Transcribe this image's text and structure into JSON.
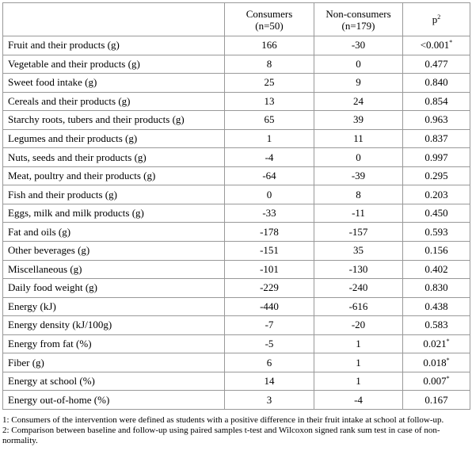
{
  "table": {
    "header": {
      "consumers": [
        "Consumers",
        "(n=50)"
      ],
      "non_consumers": [
        "Non-consumers",
        "(n=179)"
      ],
      "p": {
        "text": "p",
        "sup": "2"
      }
    },
    "rows": [
      {
        "label": "Fruit and their products (g)",
        "consumers": 166,
        "non_consumers": -30,
        "p": "<0.001",
        "note": "*"
      },
      {
        "label": "Vegetable and their products (g)",
        "consumers": 8,
        "non_consumers": 0,
        "p": "0.477"
      },
      {
        "label": "Sweet food intake (g)",
        "consumers": 25,
        "non_consumers": 9,
        "p": "0.840"
      },
      {
        "label": "Cereals and their products (g)",
        "consumers": 13,
        "non_consumers": 24,
        "p": "0.854"
      },
      {
        "label": "Starchy roots, tubers and their products (g)",
        "consumers": 65,
        "non_consumers": 39,
        "p": "0.963"
      },
      {
        "label": "Legumes and their products (g)",
        "consumers": 1,
        "non_consumers": 11,
        "p": "0.837"
      },
      {
        "label": "Nuts, seeds and their products (g)",
        "consumers": -4,
        "non_consumers": 0,
        "p": "0.997"
      },
      {
        "label": "Meat, poultry and their products (g)",
        "consumers": -64,
        "non_consumers": -39,
        "p": "0.295"
      },
      {
        "label": "Fish and their products (g)",
        "consumers": 0,
        "non_consumers": 8,
        "p": "0.203"
      },
      {
        "label": "Eggs, milk and milk products (g)",
        "consumers": -33,
        "non_consumers": -11,
        "p": "0.450"
      },
      {
        "label": "Fat and oils (g)",
        "consumers": -178,
        "non_consumers": -157,
        "p": "0.593"
      },
      {
        "label": "Other beverages (g)",
        "consumers": -151,
        "non_consumers": 35,
        "p": "0.156"
      },
      {
        "label": "Miscellaneous (g)",
        "consumers": -101,
        "non_consumers": -130,
        "p": "0.402"
      },
      {
        "label": "Daily food weight (g)",
        "consumers": -229,
        "non_consumers": -240,
        "p": "0.830"
      },
      {
        "label": "Energy (kJ)",
        "consumers": -440,
        "non_consumers": -616,
        "p": "0.438"
      },
      {
        "label": "Energy density (kJ/100g)",
        "consumers": -7,
        "non_consumers": -20,
        "p": "0.583"
      },
      {
        "label": "Energy from fat (%)",
        "consumers": -5,
        "non_consumers": 1,
        "p": "0.021",
        "note": "*"
      },
      {
        "label": "Fiber (g)",
        "consumers": 6,
        "non_consumers": 1,
        "p": "0.018",
        "note": "*"
      },
      {
        "label": "Energy at school (%)",
        "consumers": 14,
        "non_consumers": 1,
        "p": "0.007",
        "note": "*"
      },
      {
        "label": "Energy out-of-home (%)",
        "consumers": 3,
        "non_consumers": -4,
        "p": "0.167"
      }
    ]
  },
  "footnotes": [
    "1: Consumers of the intervention were defined as students with a positive difference in their fruit intake at school at follow-up.",
    "2: Comparison between baseline and follow-up using paired samples t-test and Wilcoxon signed rank sum test in case of non-normality."
  ]
}
